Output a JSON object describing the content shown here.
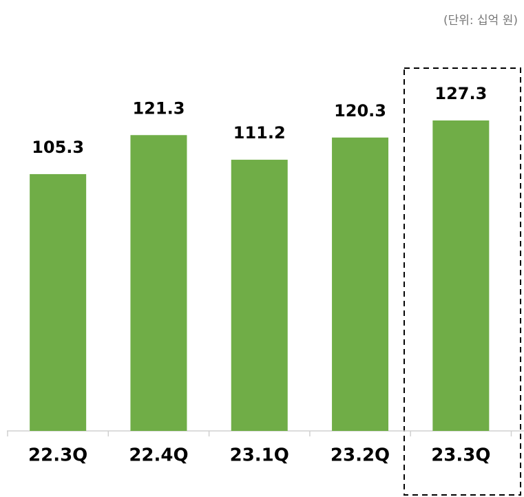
{
  "chart_data": {
    "type": "bar",
    "subtitle": "(단위: 십억 원)",
    "categories": [
      "22.3Q",
      "22.4Q",
      "23.1Q",
      "23.2Q",
      "23.3Q"
    ],
    "values": [
      105.3,
      121.3,
      111.2,
      120.3,
      127.3
    ],
    "color": "#70ad47"
  }
}
